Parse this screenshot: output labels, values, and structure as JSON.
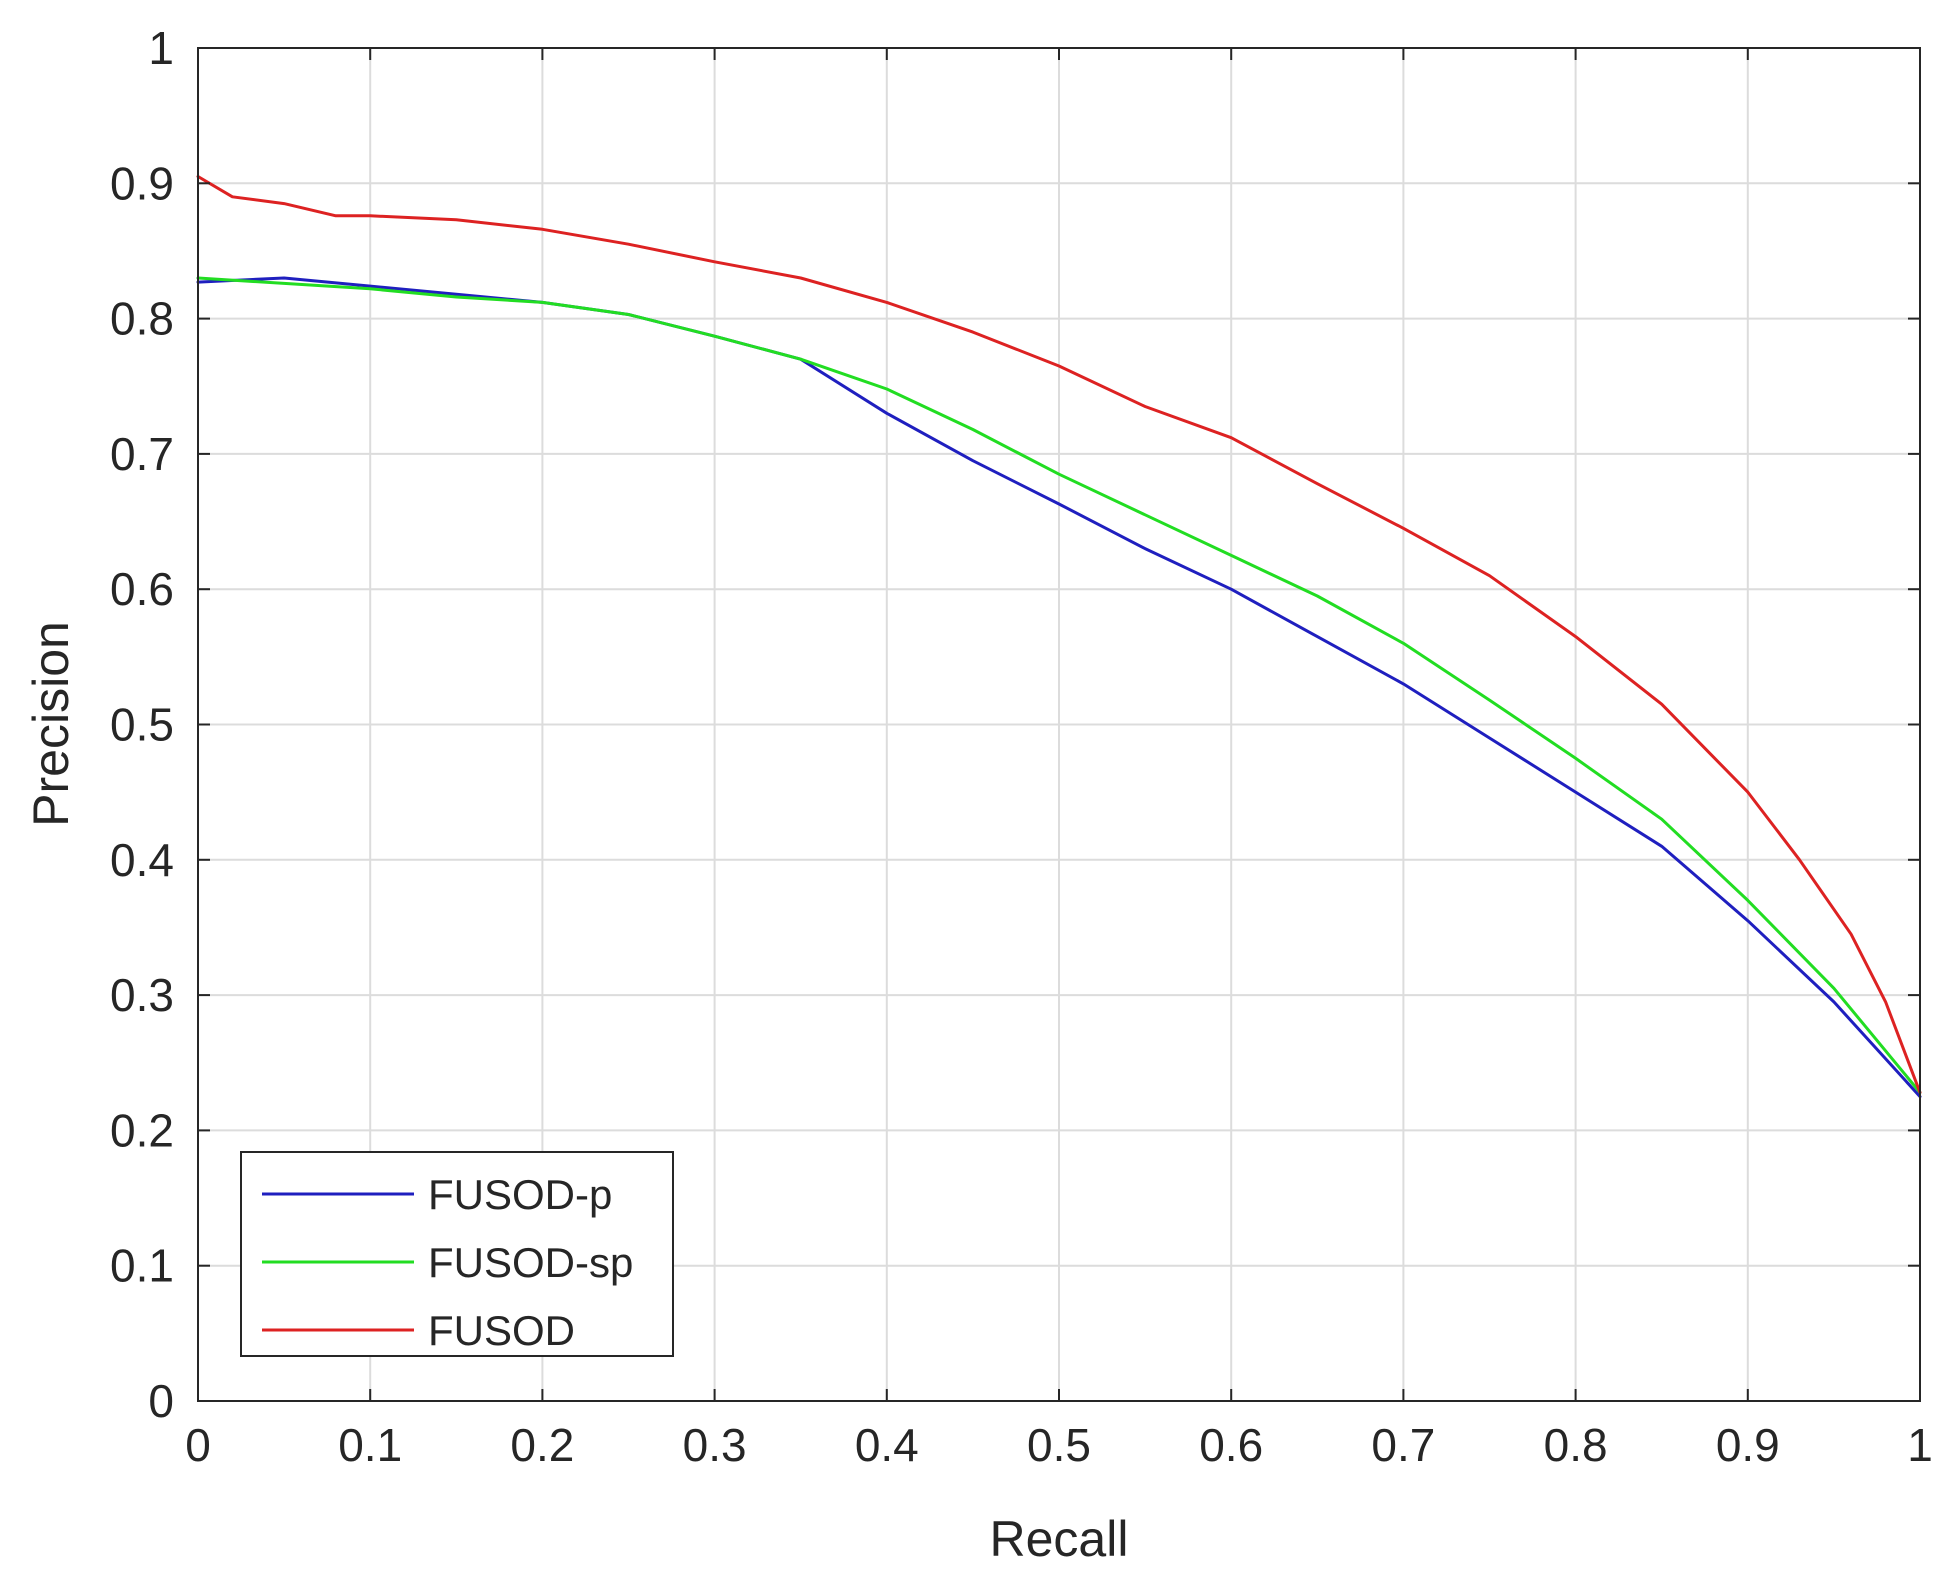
{
  "chart_data": {
    "type": "line",
    "title": "",
    "xlabel": "Recall",
    "ylabel": "Precision",
    "xlim": [
      0,
      1
    ],
    "ylim": [
      0,
      1
    ],
    "xticks": [
      "0",
      "0.1",
      "0.2",
      "0.3",
      "0.4",
      "0.5",
      "0.6",
      "0.7",
      "0.8",
      "0.9",
      "1"
    ],
    "yticks": [
      "0",
      "0.1",
      "0.2",
      "0.3",
      "0.4",
      "0.5",
      "0.6",
      "0.7",
      "0.8",
      "0.9",
      "1"
    ],
    "grid": true,
    "legend_position": "bottom-left",
    "series": [
      {
        "name": "FUSOD-p",
        "color": "#1f1fbf",
        "points": [
          [
            0.0,
            0.827
          ],
          [
            0.05,
            0.83
          ],
          [
            0.1,
            0.824
          ],
          [
            0.15,
            0.818
          ],
          [
            0.2,
            0.812
          ],
          [
            0.25,
            0.803
          ],
          [
            0.3,
            0.787
          ],
          [
            0.35,
            0.77
          ],
          [
            0.4,
            0.73
          ],
          [
            0.45,
            0.695
          ],
          [
            0.5,
            0.663
          ],
          [
            0.55,
            0.63
          ],
          [
            0.6,
            0.6
          ],
          [
            0.65,
            0.565
          ],
          [
            0.7,
            0.53
          ],
          [
            0.75,
            0.49
          ],
          [
            0.8,
            0.45
          ],
          [
            0.85,
            0.41
          ],
          [
            0.9,
            0.355
          ],
          [
            0.95,
            0.295
          ],
          [
            1.0,
            0.225
          ]
        ]
      },
      {
        "name": "FUSOD-sp",
        "color": "#22dd22",
        "points": [
          [
            0.0,
            0.83
          ],
          [
            0.05,
            0.826
          ],
          [
            0.1,
            0.822
          ],
          [
            0.15,
            0.816
          ],
          [
            0.2,
            0.812
          ],
          [
            0.25,
            0.803
          ],
          [
            0.3,
            0.787
          ],
          [
            0.35,
            0.77
          ],
          [
            0.4,
            0.748
          ],
          [
            0.45,
            0.718
          ],
          [
            0.5,
            0.685
          ],
          [
            0.55,
            0.655
          ],
          [
            0.6,
            0.625
          ],
          [
            0.65,
            0.595
          ],
          [
            0.7,
            0.56
          ],
          [
            0.75,
            0.518
          ],
          [
            0.8,
            0.475
          ],
          [
            0.85,
            0.43
          ],
          [
            0.9,
            0.37
          ],
          [
            0.95,
            0.305
          ],
          [
            1.0,
            0.228
          ]
        ]
      },
      {
        "name": "FUSOD",
        "color": "#dd2222",
        "points": [
          [
            0.0,
            0.905
          ],
          [
            0.02,
            0.89
          ],
          [
            0.05,
            0.885
          ],
          [
            0.08,
            0.876
          ],
          [
            0.1,
            0.876
          ],
          [
            0.15,
            0.873
          ],
          [
            0.2,
            0.866
          ],
          [
            0.25,
            0.855
          ],
          [
            0.3,
            0.842
          ],
          [
            0.35,
            0.83
          ],
          [
            0.4,
            0.812
          ],
          [
            0.45,
            0.79
          ],
          [
            0.5,
            0.765
          ],
          [
            0.55,
            0.735
          ],
          [
            0.6,
            0.712
          ],
          [
            0.65,
            0.678
          ],
          [
            0.7,
            0.645
          ],
          [
            0.75,
            0.61
          ],
          [
            0.8,
            0.565
          ],
          [
            0.85,
            0.515
          ],
          [
            0.9,
            0.45
          ],
          [
            0.93,
            0.4
          ],
          [
            0.96,
            0.345
          ],
          [
            0.98,
            0.295
          ],
          [
            1.0,
            0.228
          ]
        ]
      }
    ]
  }
}
